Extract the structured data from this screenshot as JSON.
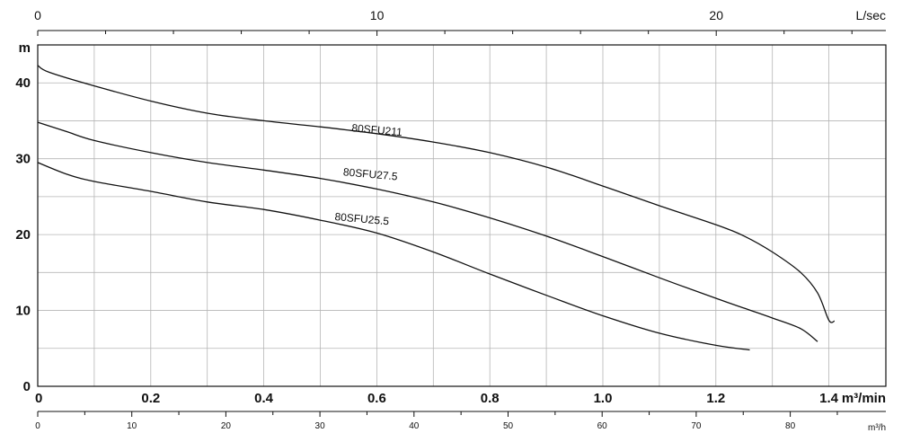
{
  "chart_data": {
    "type": "line",
    "title": "",
    "grid": true,
    "legend": "none",
    "y_axis": {
      "unit_label": "m",
      "range": [
        0,
        45
      ],
      "ticks": [
        0,
        10,
        20,
        30,
        40
      ],
      "tick_labels": [
        "0",
        "10",
        "20",
        "30",
        "40"
      ]
    },
    "x_axis_main": {
      "unit_label": "m³/min",
      "range": [
        0,
        1.5
      ],
      "ticks": [
        0,
        0.2,
        0.4,
        0.6,
        0.8,
        1.0,
        1.2,
        1.4
      ],
      "tick_labels": [
        "0",
        "0.2",
        "0.4",
        "0.6",
        "0.8",
        "1.0",
        "1.2",
        "1.4"
      ],
      "gridlines": [
        0.1,
        0.2,
        0.3,
        0.4,
        0.5,
        0.6,
        0.7,
        0.8,
        0.9,
        1.0,
        1.1,
        1.2,
        1.3,
        1.4
      ]
    },
    "x_axis_top": {
      "unit_label": "L/sec",
      "range": [
        0,
        25
      ],
      "ticks": [
        0,
        10,
        20
      ],
      "tick_labels": [
        "0",
        "10",
        "20"
      ],
      "minor_ticks": [
        2,
        4,
        6,
        8,
        12,
        14,
        16,
        18,
        22,
        24
      ]
    },
    "x_axis_bottom": {
      "unit_label": "m³/h",
      "range": [
        0,
        90
      ],
      "ticks": [
        0,
        10,
        20,
        30,
        40,
        50,
        60,
        70,
        80
      ],
      "tick_labels": [
        "0",
        "10",
        "20",
        "30",
        "40",
        "50",
        "60",
        "70",
        "80"
      ],
      "minor_ticks": [
        5,
        15,
        25,
        35,
        45,
        55,
        65,
        75,
        85
      ]
    },
    "series": [
      {
        "name": "80SFU211",
        "points": [
          [
            0,
            42.3
          ],
          [
            0.02,
            41.4
          ],
          [
            0.1,
            39.6
          ],
          [
            0.2,
            37.6
          ],
          [
            0.3,
            36.0
          ],
          [
            0.4,
            35.0
          ],
          [
            0.5,
            34.2
          ],
          [
            0.6,
            33.3
          ],
          [
            0.7,
            32.2
          ],
          [
            0.8,
            30.8
          ],
          [
            0.9,
            28.9
          ],
          [
            1.0,
            26.4
          ],
          [
            1.1,
            23.8
          ],
          [
            1.2,
            21.3
          ],
          [
            1.25,
            19.8
          ],
          [
            1.3,
            17.7
          ],
          [
            1.35,
            15.0
          ],
          [
            1.38,
            12.3
          ],
          [
            1.4,
            8.7
          ],
          [
            1.41,
            8.6
          ]
        ],
        "label_at": [
          0.555,
          33.6
        ]
      },
      {
        "name": "80SFU27.5",
        "points": [
          [
            0,
            34.8
          ],
          [
            0.05,
            33.6
          ],
          [
            0.1,
            32.4
          ],
          [
            0.2,
            30.8
          ],
          [
            0.3,
            29.5
          ],
          [
            0.4,
            28.5
          ],
          [
            0.5,
            27.4
          ],
          [
            0.6,
            26.0
          ],
          [
            0.7,
            24.3
          ],
          [
            0.8,
            22.2
          ],
          [
            0.9,
            19.8
          ],
          [
            1.0,
            17.1
          ],
          [
            1.1,
            14.3
          ],
          [
            1.2,
            11.6
          ],
          [
            1.25,
            10.3
          ],
          [
            1.3,
            9.0
          ],
          [
            1.35,
            7.6
          ],
          [
            1.38,
            5.9
          ]
        ],
        "label_at": [
          0.54,
          27.8
        ]
      },
      {
        "name": "80SFU25.5",
        "points": [
          [
            0,
            29.5
          ],
          [
            0.05,
            28.0
          ],
          [
            0.1,
            27.0
          ],
          [
            0.2,
            25.7
          ],
          [
            0.3,
            24.3
          ],
          [
            0.4,
            23.3
          ],
          [
            0.5,
            21.9
          ],
          [
            0.6,
            20.2
          ],
          [
            0.7,
            17.7
          ],
          [
            0.8,
            14.8
          ],
          [
            0.9,
            12.0
          ],
          [
            1.0,
            9.3
          ],
          [
            1.1,
            7.0
          ],
          [
            1.2,
            5.4
          ],
          [
            1.26,
            4.8
          ]
        ],
        "label_at": [
          0.525,
          21.9
        ]
      }
    ]
  }
}
